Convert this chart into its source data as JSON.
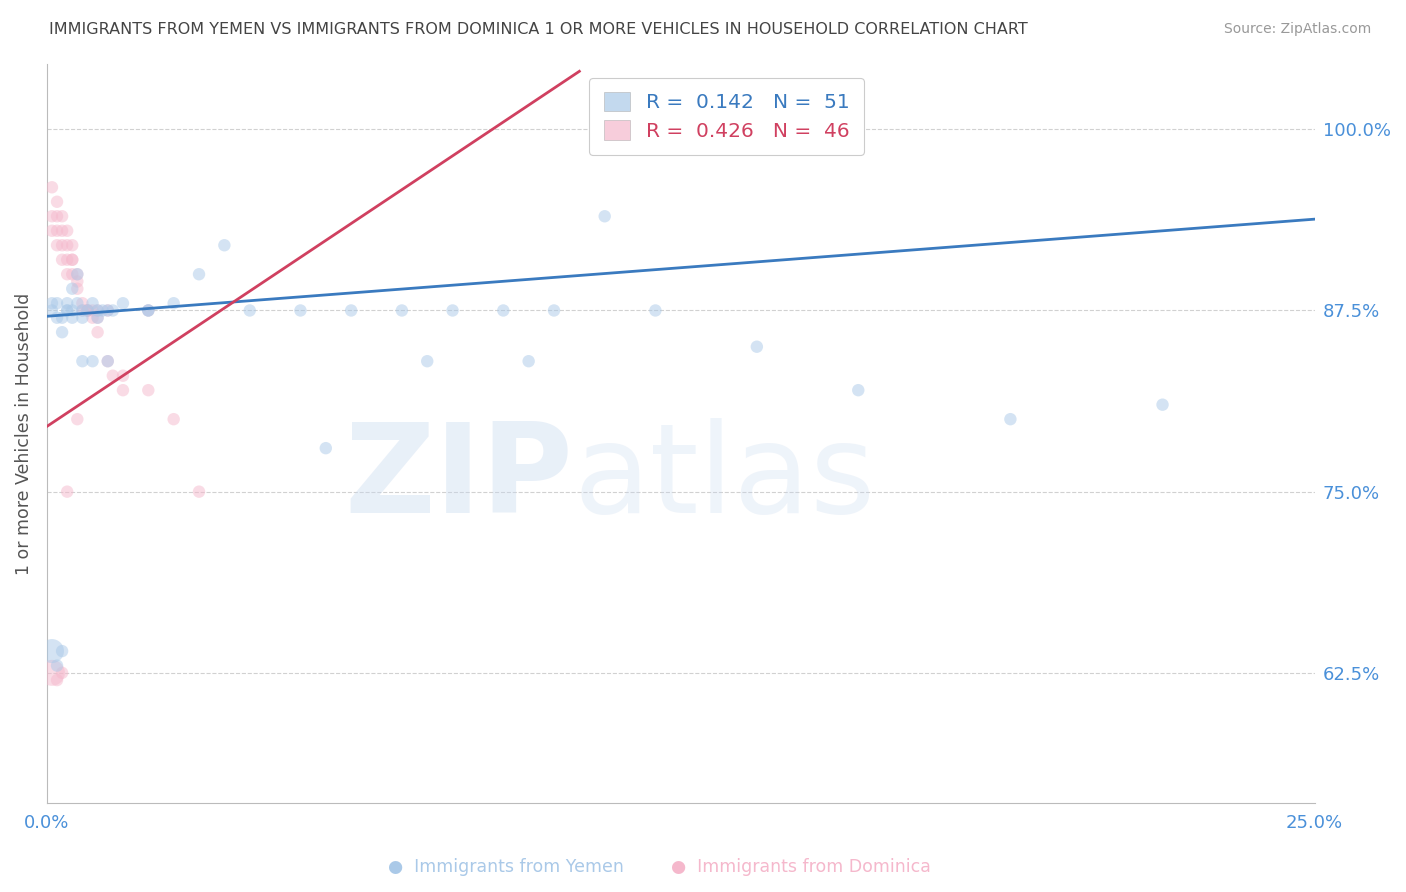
{
  "title": "IMMIGRANTS FROM YEMEN VS IMMIGRANTS FROM DOMINICA 1 OR MORE VEHICLES IN HOUSEHOLD CORRELATION CHART",
  "source": "Source: ZipAtlas.com",
  "ylabel": "1 or more Vehicles in Household",
  "yticks": [
    0.625,
    0.75,
    0.875,
    1.0
  ],
  "ytick_labels": [
    "62.5%",
    "75.0%",
    "87.5%",
    "100.0%"
  ],
  "xtick_labels": [
    "0.0%",
    "25.0%"
  ],
  "xlim": [
    0.0,
    0.25
  ],
  "ylim": [
    0.535,
    1.045
  ],
  "legend_r1": "R =  0.142",
  "legend_n1": "N =  51",
  "legend_r2": "R =  0.426",
  "legend_n2": "N =  46",
  "watermark_zip": "ZIP",
  "watermark_atlas": "atlas",
  "blue_color": "#aac9e8",
  "pink_color": "#f5b8cc",
  "blue_line_color": "#3a7abf",
  "pink_line_color": "#d04060",
  "title_color": "#444444",
  "axis_tick_color": "#4a90d9",
  "grid_color": "#cccccc",
  "ylabel_color": "#555555",
  "legend_text_color_1": "#3a7abf",
  "legend_text_color_2": "#d04060",
  "yemen_x": [
    0.001,
    0.001,
    0.002,
    0.002,
    0.003,
    0.003,
    0.004,
    0.004,
    0.005,
    0.005,
    0.006,
    0.006,
    0.007,
    0.007,
    0.008,
    0.009,
    0.01,
    0.01,
    0.011,
    0.012,
    0.013,
    0.015,
    0.02,
    0.025,
    0.03,
    0.04,
    0.05,
    0.06,
    0.07,
    0.08,
    0.09,
    0.1,
    0.11,
    0.12,
    0.14,
    0.16,
    0.19,
    0.22,
    0.001,
    0.002,
    0.003,
    0.004,
    0.005,
    0.007,
    0.009,
    0.012,
    0.02,
    0.035,
    0.055,
    0.075,
    0.095
  ],
  "yemen_y": [
    0.875,
    0.88,
    0.87,
    0.88,
    0.86,
    0.87,
    0.875,
    0.88,
    0.89,
    0.87,
    0.9,
    0.88,
    0.875,
    0.87,
    0.875,
    0.88,
    0.87,
    0.875,
    0.875,
    0.875,
    0.875,
    0.88,
    0.875,
    0.88,
    0.9,
    0.875,
    0.875,
    0.875,
    0.875,
    0.875,
    0.875,
    0.875,
    0.94,
    0.875,
    0.85,
    0.82,
    0.8,
    0.81,
    0.64,
    0.63,
    0.64,
    0.875,
    0.875,
    0.84,
    0.84,
    0.84,
    0.875,
    0.92,
    0.78,
    0.84,
    0.84
  ],
  "yemen_sizes": [
    80,
    80,
    80,
    80,
    80,
    80,
    80,
    80,
    80,
    80,
    80,
    80,
    80,
    80,
    80,
    80,
    80,
    80,
    80,
    80,
    80,
    80,
    80,
    80,
    80,
    80,
    80,
    80,
    80,
    80,
    80,
    80,
    80,
    80,
    80,
    80,
    80,
    80,
    300,
    80,
    80,
    80,
    80,
    80,
    80,
    80,
    80,
    80,
    80,
    80,
    80
  ],
  "dominica_x": [
    0.001,
    0.001,
    0.002,
    0.002,
    0.003,
    0.003,
    0.004,
    0.004,
    0.005,
    0.005,
    0.006,
    0.006,
    0.007,
    0.008,
    0.009,
    0.01,
    0.01,
    0.012,
    0.013,
    0.015,
    0.001,
    0.002,
    0.002,
    0.003,
    0.003,
    0.004,
    0.004,
    0.005,
    0.005,
    0.006,
    0.007,
    0.008,
    0.009,
    0.01,
    0.015,
    0.02,
    0.025,
    0.03,
    0.001,
    0.002,
    0.003,
    0.004,
    0.006,
    0.008,
    0.012,
    0.02
  ],
  "dominica_y": [
    0.93,
    0.94,
    0.92,
    0.93,
    0.91,
    0.92,
    0.9,
    0.91,
    0.9,
    0.91,
    0.89,
    0.895,
    0.88,
    0.875,
    0.875,
    0.875,
    0.87,
    0.84,
    0.83,
    0.82,
    0.96,
    0.95,
    0.94,
    0.93,
    0.94,
    0.93,
    0.92,
    0.91,
    0.92,
    0.9,
    0.875,
    0.875,
    0.87,
    0.86,
    0.83,
    0.82,
    0.8,
    0.75,
    0.625,
    0.62,
    0.625,
    0.75,
    0.8,
    0.875,
    0.875,
    0.875
  ],
  "dominica_sizes": [
    80,
    80,
    80,
    80,
    80,
    80,
    80,
    80,
    80,
    80,
    80,
    80,
    80,
    80,
    80,
    80,
    80,
    80,
    80,
    80,
    80,
    80,
    80,
    80,
    80,
    80,
    80,
    80,
    80,
    80,
    80,
    80,
    80,
    80,
    80,
    80,
    80,
    80,
    350,
    80,
    80,
    80,
    80,
    80,
    80,
    80
  ],
  "blue_line_x": [
    0.0,
    0.25
  ],
  "blue_line_y": [
    0.871,
    0.938
  ],
  "pink_line_x": [
    0.0,
    0.105
  ],
  "pink_line_y": [
    0.795,
    1.04
  ]
}
